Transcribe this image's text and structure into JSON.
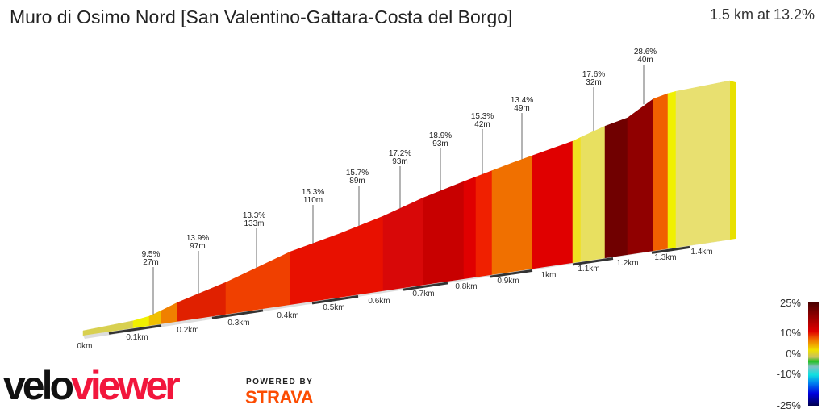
{
  "header": {
    "title": "Muro di Osimo Nord [San Valentino-Gattara-Costa del Borgo]",
    "summary": "1.5 km at 13.2%"
  },
  "annotations": [
    {
      "grade": "9.5%",
      "length": "27m"
    },
    {
      "grade": "13.9%",
      "length": "97m"
    },
    {
      "grade": "13.3%",
      "length": "133m"
    },
    {
      "grade": "15.3%",
      "length": "110m"
    },
    {
      "grade": "15.7%",
      "length": "89m"
    },
    {
      "grade": "17.2%",
      "length": "93m"
    },
    {
      "grade": "18.9%",
      "length": "93m"
    },
    {
      "grade": "15.3%",
      "length": "42m"
    },
    {
      "grade": "13.4%",
      "length": "49m"
    },
    {
      "grade": "17.6%",
      "length": "32m"
    },
    {
      "grade": "28.6%",
      "length": "40m"
    }
  ],
  "km_labels": [
    "0km",
    "0.1km",
    "0.2km",
    "0.3km",
    "0.4km",
    "0.5km",
    "0.6km",
    "0.7km",
    "0.8km",
    "0.9km",
    "1km",
    "1.1km",
    "1.2km",
    "1.3km",
    "1.4km"
  ],
  "legend": {
    "labels": [
      "25%",
      "10%",
      "0%",
      "-10%",
      "-25%"
    ]
  },
  "segment_colors": [
    "#d8d050",
    "#f0f000",
    "#f0c000",
    "#f08000",
    "#e02000",
    "#f04000",
    "#e81000",
    "#e81000",
    "#d80808",
    "#c80000",
    "#e00000",
    "#f02000",
    "#f07000",
    "#f07000",
    "#e00000",
    "#f0e020",
    "#e8e060",
    "#700000",
    "#900000",
    "#f06000",
    "#f0f000",
    "#e8e070"
  ],
  "branding": {
    "logo_part1": "velo",
    "logo_part2": "viewer",
    "powered_by": "POWERED BY",
    "strava": "STRAVA"
  }
}
